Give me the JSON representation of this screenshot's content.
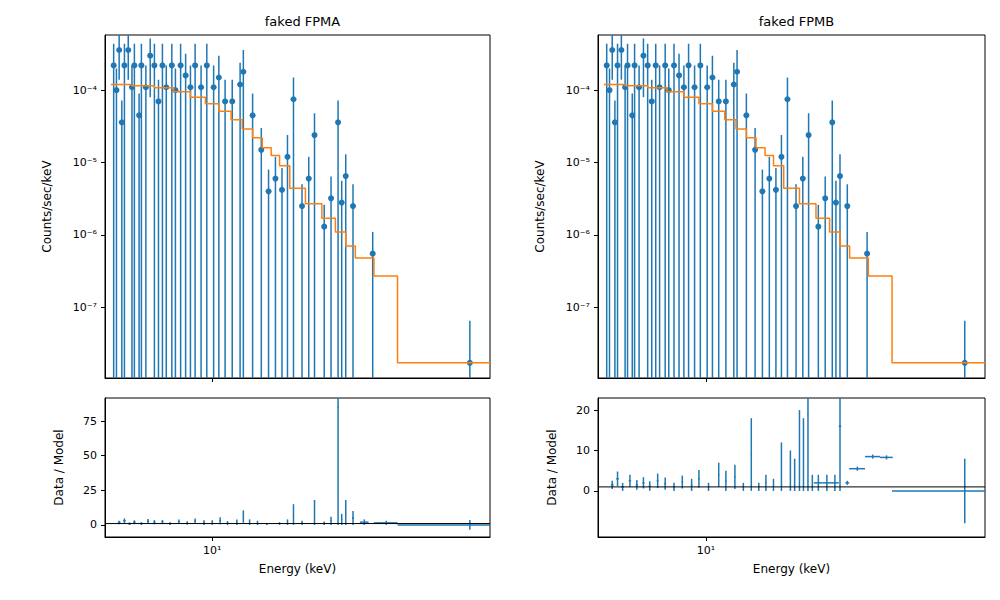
{
  "chart_data": [
    {
      "type": "scatter",
      "title": "faked FPMA",
      "ylabel": "Counts/sec/keV",
      "log": true,
      "grid": false,
      "tick_labels": "y",
      "xlim": [
        4.5,
        79
      ],
      "xticks": [
        {
          "value": 10,
          "label": "10¹"
        }
      ],
      "ylim": [
        1.05e-08,
        0.00058
      ],
      "yticks": [
        {
          "value": 1e-07,
          "label": "10⁻⁷"
        },
        {
          "value": 1e-06,
          "label": "10⁻⁶"
        },
        {
          "value": 1e-05,
          "label": "10⁻⁵"
        },
        {
          "value": 0.0001,
          "label": "10⁻⁴"
        }
      ],
      "series": [
        {
          "type": "scatter",
          "color": "#1f77b4",
          "marker": "circle",
          "x": [
            4.8,
            4.9,
            5.0,
            5.1,
            5.2,
            5.35,
            5.5,
            5.6,
            5.8,
            5.9,
            6.1,
            6.3,
            6.5,
            6.7,
            6.9,
            7.1,
            7.4,
            7.6,
            7.9,
            8.2,
            8.5,
            8.8,
            9.2,
            9.6,
            10.1,
            10.5,
            11.0,
            11.6,
            12.3,
            12.6,
            13.5,
            14.4,
            15.2,
            16.0,
            16.8,
            17.5,
            18.3,
            19.5,
            20.5,
            21.4,
            23.0,
            24.2,
            25.5,
            26.2,
            27.0,
            28.5,
            33.0,
            68.0
          ],
          "values": [
            0.00022,
            0.0001,
            0.00036,
            3.6e-05,
            0.00022,
            0.00036,
            0.00011,
            0.00022,
            4.5e-05,
            0.00022,
            0.00011,
            0.0003,
            0.00022,
            7e-05,
            0.00022,
            0.00011,
            0.00022,
            0.0001,
            0.00022,
            0.00016,
            0.00011,
            0.00022,
            0.00011,
            0.00022,
            0.00011,
            0.00015,
            7e-05,
            7e-05,
            0.00012,
            0.00018,
            4.5e-05,
            1.5e-05,
            4e-06,
            6e-06,
            4.2e-06,
            1.2e-05,
            7.5e-05,
            2.5e-06,
            6e-06,
            2.4e-05,
            1.3e-06,
            3.2e-06,
            3.6e-05,
            2.8e-06,
            6.5e-06,
            2.5e-06,
            5.5e-07,
            1.7e-08
          ],
          "yerr": [
            0.00022,
            0.0001,
            0.00022,
            3.6e-05,
            0.00022,
            0.00022,
            0.00011,
            0.00022,
            4.5e-05,
            0.00022,
            0.00011,
            0.00022,
            0.00022,
            7e-05,
            0.00022,
            0.00011,
            0.00022,
            0.0001,
            0.00022,
            0.00016,
            0.00011,
            0.00022,
            0.00011,
            0.00022,
            0.00011,
            0.00015,
            7e-05,
            7e-05,
            0.00012,
            0.00018,
            4.5e-05,
            1.5e-05,
            4e-06,
            6e-06,
            4.2e-06,
            1.2e-05,
            7.5e-05,
            2.5e-06,
            6e-06,
            2.4e-05,
            1.3e-06,
            3.2e-06,
            3.6e-05,
            2.8e-06,
            6.5e-06,
            2.5e-06,
            5.5e-07,
            4.8e-08
          ]
        },
        {
          "type": "step",
          "color": "#ff7f0e",
          "bins": [
            4.7,
            5.5,
            6.5,
            7.5,
            8.5,
            9.5,
            10.5,
            11.5,
            12.5,
            13.5,
            14.5,
            15.5,
            16.5,
            17.8,
            20,
            22.6,
            25,
            27,
            29,
            33.3,
            39.7,
            79
          ],
          "values": [
            0.00012,
            0.000115,
            0.000108,
            9.5e-05,
            8e-05,
            6.5e-05,
            5.1e-05,
            3.9e-05,
            2.9e-05,
            2.2e-05,
            1.6e-05,
            1.25e-05,
            9e-06,
            4.4e-06,
            2.7e-06,
            1.7e-06,
            1.1e-06,
            7e-07,
            4.8e-07,
            2.7e-07,
            1.7e-08
          ]
        }
      ]
    },
    {
      "type": "scatter",
      "ylabel": "Data / Model",
      "xlabel": "Energy (keV)",
      "log": "x",
      "grid": false,
      "ref_line": 1,
      "xlim": [
        4.5,
        79
      ],
      "xticks": [
        {
          "value": 10,
          "label": "10¹"
        }
      ],
      "ylim": [
        -8.7,
        91.6
      ],
      "yticks": [
        0,
        25,
        50,
        75
      ],
      "series": [
        {
          "type": "scatter",
          "color": "#1f77b4",
          "marker": "none",
          "x": [
            5.0,
            5.2,
            5.4,
            5.6,
            5.9,
            6.2,
            6.5,
            6.9,
            7.3,
            7.8,
            8.3,
            8.8,
            9.4,
            10.0,
            10.6,
            11.2,
            12.0,
            12.6,
            13.2,
            14.0,
            15.0,
            16.5,
            17.5,
            18.3,
            19.5,
            21.4,
            23.0,
            24.2,
            25.5,
            26.2,
            27.0,
            28.5,
            31.0,
            36.5,
            59.35,
            68.0
          ],
          "values": [
            1.8,
            3.0,
            0.9,
            2.0,
            1.0,
            2.6,
            2.0,
            2.1,
            1.0,
            2.3,
            1.4,
            2.7,
            1.7,
            1.7,
            3.0,
            1.4,
            2.0,
            6.0,
            2.0,
            1.5,
            0.5,
            1.0,
            2.0,
            7.5,
            1.5,
            9.0,
            1.2,
            3.0,
            85,
            4.0,
            9.0,
            5.0,
            2.0,
            1.5,
            0.0,
            0.0
          ],
          "yerr": [
            1.3,
            1.7,
            0.9,
            1.4,
            1.0,
            1.7,
            1.5,
            1.5,
            1.0,
            1.7,
            1.2,
            2.0,
            1.7,
            1.7,
            2.5,
            1.4,
            2.0,
            4.5,
            2.0,
            1.5,
            0.5,
            1.0,
            2.0,
            7.5,
            1.5,
            9.0,
            1.2,
            3.0,
            85,
            4.0,
            9.0,
            5.0,
            2.0,
            1.5,
            0.0,
            3.5
          ],
          "xerr": [
            0.05,
            0.05,
            0.05,
            0.05,
            0.05,
            0.05,
            0.05,
            0.05,
            0.05,
            0.05,
            0.05,
            0.05,
            0.05,
            0.05,
            0.05,
            0.05,
            0.05,
            0.05,
            0.05,
            0.05,
            0.05,
            0.05,
            0.05,
            0.05,
            0.05,
            0.05,
            0.1,
            0.1,
            0.1,
            0.1,
            0.1,
            0.2,
            1.0,
            3.2,
            19.65,
            0
          ]
        }
      ]
    },
    {
      "type": "scatter",
      "title": "faked FPMB",
      "ylabel": "Counts/sec/keV",
      "log": true,
      "grid": false,
      "tick_labels": "y",
      "xlim": [
        4.5,
        79
      ],
      "xticks": [
        {
          "value": 10,
          "label": "10¹"
        }
      ],
      "ylim": [
        1.05e-08,
        0.00058
      ],
      "yticks": [
        {
          "value": 1e-07,
          "label": "10⁻⁷"
        },
        {
          "value": 1e-06,
          "label": "10⁻⁶"
        },
        {
          "value": 1e-05,
          "label": "10⁻⁵"
        },
        {
          "value": 0.0001,
          "label": "10⁻⁴"
        }
      ],
      "series": [
        {
          "type": "scatter",
          "color": "#1f77b4",
          "marker": "circle",
          "x": [
            4.8,
            4.9,
            5.0,
            5.1,
            5.2,
            5.35,
            5.5,
            5.6,
            5.8,
            5.9,
            6.1,
            6.3,
            6.5,
            6.7,
            6.9,
            7.1,
            7.4,
            7.6,
            7.9,
            8.2,
            8.5,
            8.8,
            9.2,
            9.6,
            10.1,
            10.5,
            11.0,
            11.6,
            12.3,
            12.6,
            13.5,
            14.4,
            15.2,
            16.0,
            16.8,
            17.5,
            18.3,
            19.5,
            20.5,
            21.4,
            23.0,
            24.2,
            25.5,
            26.2,
            27.0,
            28.5,
            33.0,
            68.0
          ],
          "values": [
            0.00022,
            0.0001,
            0.00036,
            3.6e-05,
            0.00022,
            0.00036,
            0.00011,
            0.00022,
            4.5e-05,
            0.00022,
            0.00011,
            0.0003,
            0.00022,
            7e-05,
            0.00022,
            0.00011,
            0.00022,
            0.0001,
            0.00022,
            0.00016,
            0.00011,
            0.00022,
            0.00011,
            0.00022,
            0.00011,
            0.00015,
            7e-05,
            7e-05,
            0.00012,
            0.00018,
            4.5e-05,
            1.5e-05,
            4e-06,
            6e-06,
            4.2e-06,
            1.2e-05,
            7.5e-05,
            2.5e-06,
            6e-06,
            2.4e-05,
            1.3e-06,
            3.2e-06,
            3.6e-05,
            2.8e-06,
            6.5e-06,
            2.5e-06,
            5.5e-07,
            1.7e-08
          ],
          "yerr": [
            0.00022,
            0.0001,
            0.00022,
            3.6e-05,
            0.00022,
            0.00022,
            0.00011,
            0.00022,
            4.5e-05,
            0.00022,
            0.00011,
            0.00022,
            0.00022,
            7e-05,
            0.00022,
            0.00011,
            0.00022,
            0.0001,
            0.00022,
            0.00016,
            0.00011,
            0.00022,
            0.00011,
            0.00022,
            0.00011,
            0.00015,
            7e-05,
            7e-05,
            0.00012,
            0.00018,
            4.5e-05,
            1.5e-05,
            4e-06,
            6e-06,
            4.2e-06,
            1.2e-05,
            7.5e-05,
            2.5e-06,
            6e-06,
            2.4e-05,
            1.3e-06,
            3.2e-06,
            3.6e-05,
            2.8e-06,
            6.5e-06,
            2.5e-06,
            5.5e-07,
            4.8e-08
          ]
        },
        {
          "type": "step",
          "color": "#ff7f0e",
          "bins": [
            4.7,
            5.5,
            6.5,
            7.5,
            8.5,
            9.5,
            10.5,
            11.5,
            12.5,
            13.5,
            14.5,
            15.5,
            16.5,
            17.8,
            20,
            22.6,
            25,
            27,
            29,
            33.3,
            39.7,
            79
          ],
          "values": [
            0.00012,
            0.000115,
            0.000108,
            9.5e-05,
            8e-05,
            6.5e-05,
            5.1e-05,
            3.9e-05,
            2.9e-05,
            2.2e-05,
            1.6e-05,
            1.25e-05,
            9e-06,
            4.4e-06,
            2.7e-06,
            1.7e-06,
            1.1e-06,
            7e-07,
            4.8e-07,
            2.7e-07,
            1.7e-08
          ]
        }
      ]
    },
    {
      "type": "scatter",
      "ylabel": "Data / Model",
      "xlabel": "Energy (keV)",
      "log": "x",
      "grid": false,
      "ref_line": 1,
      "xlim": [
        4.5,
        79
      ],
      "xticks": [
        {
          "value": 10,
          "label": "10¹"
        }
      ],
      "ylim": [
        -11.4,
        23.0
      ],
      "yticks": [
        0,
        10,
        20
      ],
      "series": [
        {
          "type": "scatter",
          "color": "#1f77b4",
          "marker": "none",
          "x": [
            5.0,
            5.2,
            5.4,
            5.7,
            6.0,
            6.3,
            6.6,
            7.0,
            7.4,
            7.9,
            8.4,
            9.0,
            9.5,
            10.2,
            11.0,
            11.6,
            12.4,
            13.2,
            14.0,
            14.8,
            15.6,
            16.5,
            17.5,
            18.7,
            19.3,
            20.0,
            20.6,
            21.3,
            22.0,
            23.0,
            24.5,
            26.0,
            27.0,
            28.5,
            30.7,
            34.4,
            38.1,
            59.35,
            68.0
          ],
          "values": [
            1.5,
            3.0,
            1.0,
            2.5,
            1.5,
            2.0,
            1.2,
            2.5,
            1.8,
            1.0,
            2.2,
            1.5,
            3.0,
            1.0,
            4.0,
            2.5,
            3.5,
            1.0,
            9.0,
            1.0,
            2.0,
            1.5,
            6.0,
            5.0,
            4.0,
            10.0,
            9.0,
            19.0,
            2.0,
            2.0,
            2.0,
            2.0,
            16.0,
            2.0,
            5.5,
            8.5,
            8.3,
            0.0,
            0.0
          ],
          "yerr": [
            1.0,
            1.8,
            1.0,
            1.5,
            1.2,
            1.4,
            1.2,
            1.8,
            1.5,
            1.0,
            1.6,
            1.5,
            2.2,
            1.0,
            3.0,
            2.5,
            3.0,
            1.0,
            9.0,
            1.0,
            2.0,
            1.5,
            6.0,
            5.0,
            4.0,
            10.0,
            9.0,
            19.0,
            2.0,
            2.0,
            2.0,
            2.0,
            16.0,
            0.5,
            0.5,
            0.5,
            0.5,
            0.0,
            8.0
          ],
          "xerr": [
            0.05,
            0.05,
            0.05,
            0.05,
            0.05,
            0.05,
            0.05,
            0.05,
            0.05,
            0.05,
            0.05,
            0.05,
            0.05,
            0.05,
            0.05,
            0.05,
            0.05,
            0.05,
            0.05,
            0.05,
            0.05,
            0.05,
            0.05,
            0.05,
            0.05,
            0.05,
            0.05,
            0.05,
            0.05,
            0.75,
            0.75,
            0.75,
            0.25,
            0.4,
            1.8,
            1.9,
            1.8,
            19.65,
            0
          ]
        }
      ]
    }
  ]
}
